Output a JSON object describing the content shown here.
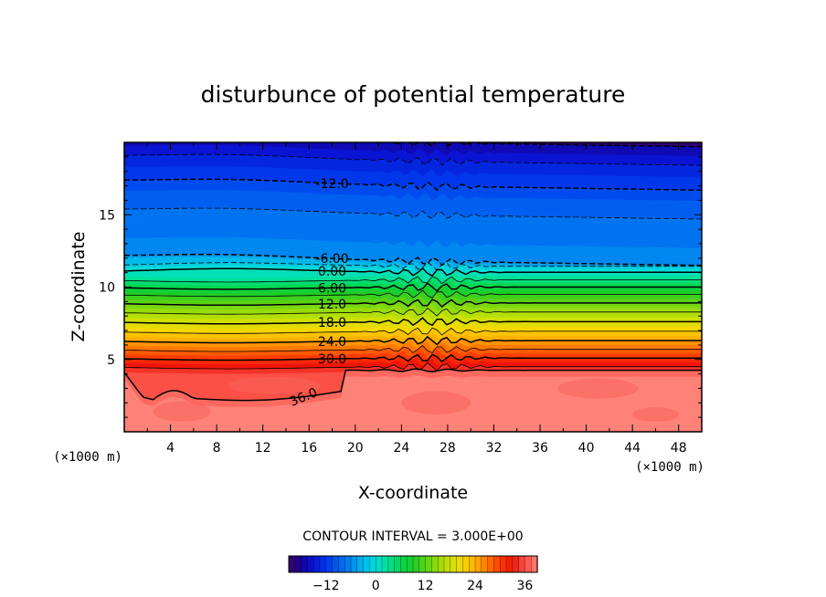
{
  "chart_data": {
    "type": "contour",
    "title": "disturbunce of potential temperature",
    "xlabel": "X-coordinate",
    "ylabel": "Z-coordinate",
    "x_unit": "(×1000 m)",
    "x_unit_right": "(×1000 m)",
    "xlim": [
      0,
      50
    ],
    "ylim": [
      0,
      20
    ],
    "x_ticks": [
      "4",
      "8",
      "12",
      "16",
      "20",
      "24",
      "28",
      "32",
      "36",
      "40",
      "44",
      "48"
    ],
    "y_ticks": [
      "5",
      "10",
      "15"
    ],
    "contour_interval_text": "CONTOUR INTERVAL = 3.000E+00",
    "contour_interval": 3.0,
    "contour_labels": [
      "-12.0",
      "-6.00",
      "0.00",
      "6.00",
      "12.0",
      "18.0",
      "24.0",
      "30.0",
      "36.0"
    ],
    "colorbar": {
      "range": [
        -21,
        39
      ],
      "tick_labels": [
        "-12",
        "0",
        "12",
        "24",
        "36"
      ]
    },
    "field_profile": {
      "z": [
        0,
        2,
        3.7,
        4.5,
        5.5,
        6.5,
        7.5,
        8.5,
        9.5,
        10.5,
        11.2,
        11.8,
        13,
        14.5,
        16,
        17,
        18.5,
        20
      ],
      "theta": [
        37.5,
        37.5,
        36.5,
        33,
        28,
        23,
        18.5,
        14,
        9,
        3,
        -1,
        -6,
        -7.5,
        -8.5,
        -10,
        -12,
        -14.5,
        -18
      ]
    }
  }
}
